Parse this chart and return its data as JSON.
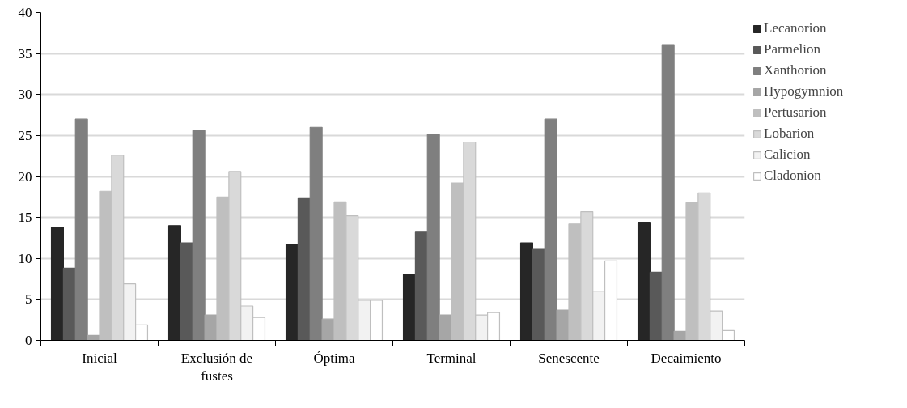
{
  "chart_data": {
    "type": "bar",
    "categories": [
      "Inicial",
      "Exclusión de fustes",
      "Óptima",
      "Terminal",
      "Senescente",
      "Decaimiento"
    ],
    "series": [
      {
        "name": "Lecanorion",
        "color": "#262626",
        "values": [
          13.8,
          14.0,
          11.7,
          8.1,
          11.9,
          14.4
        ]
      },
      {
        "name": "Parmelion",
        "color": "#595959",
        "values": [
          8.8,
          11.9,
          17.4,
          13.3,
          11.2,
          8.3
        ]
      },
      {
        "name": "Xanthorion",
        "color": "#7f7f7f",
        "values": [
          27.0,
          25.6,
          26.0,
          25.1,
          27.0,
          36.1
        ]
      },
      {
        "name": "Hypogymnion",
        "color": "#a6a6a6",
        "values": [
          0.6,
          3.1,
          2.6,
          3.1,
          3.7,
          1.1
        ]
      },
      {
        "name": "Pertusarion",
        "color": "#bfbfbf",
        "values": [
          18.2,
          17.5,
          16.9,
          19.2,
          14.2,
          16.8
        ]
      },
      {
        "name": "Lobarion",
        "color": "#d9d9d9",
        "values": [
          22.6,
          20.6,
          15.2,
          24.2,
          15.7,
          18.0
        ]
      },
      {
        "name": "Calicion",
        "color": "#f2f2f2",
        "values": [
          6.9,
          4.2,
          4.9,
          3.1,
          6.0,
          3.6
        ]
      },
      {
        "name": "Cladonion",
        "color": "#ffffff",
        "values": [
          1.9,
          2.8,
          4.9,
          3.4,
          9.7,
          1.2
        ]
      }
    ],
    "ylim": [
      0,
      40
    ],
    "yticks": [
      0,
      5,
      10,
      15,
      20,
      25,
      30,
      35,
      40
    ],
    "grid": "y",
    "legend": "right"
  }
}
